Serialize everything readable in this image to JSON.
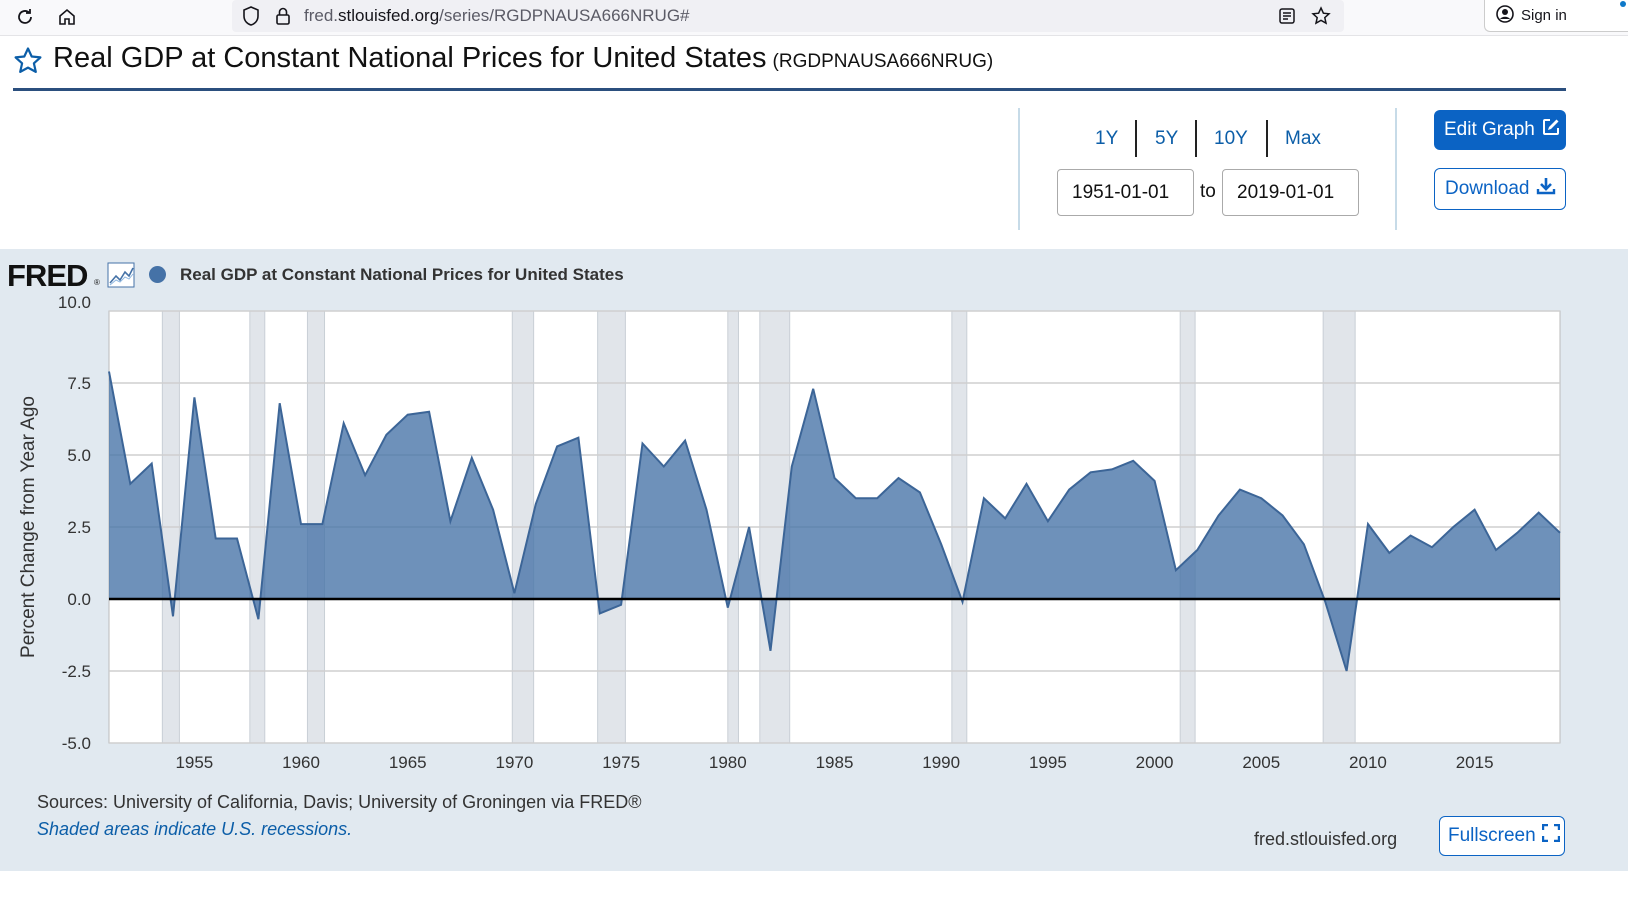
{
  "browser": {
    "url_prefix": "fred.",
    "url_domain": "stlouisfed.org",
    "url_path": "/series/RGDPNAUSA666NRUG#",
    "sign_in_label": "Sign in"
  },
  "header": {
    "title": "Real GDP at Constant National Prices for United States",
    "series_id": "(RGDPNAUSA666NRUG)"
  },
  "controls": {
    "ranges": [
      "1Y",
      "5Y",
      "10Y",
      "Max"
    ],
    "start_date": "1951-01-01",
    "to_label": "to",
    "end_date": "2019-01-01",
    "edit_graph_label": "Edit Graph",
    "download_label": "Download"
  },
  "graph": {
    "logo_text": "FRED",
    "logo_reg": "®",
    "legend_label": "Real GDP at Constant National Prices for United States",
    "series_color": "#4572a7",
    "sources": "Sources: University of California, Davis; University of Groningen via FRED®",
    "recession_note": "Shaded areas indicate U.S. recessions.",
    "site_url": "fred.stlouisfed.org",
    "fullscreen_label": "Fullscreen"
  },
  "chart_data": {
    "type": "area",
    "title": "Real GDP at Constant National Prices for United States",
    "ylabel": "Percent Change from Year Ago",
    "xlabel": "",
    "ylim": [
      -5.0,
      10.0
    ],
    "xlim": [
      1951,
      2019
    ],
    "y_ticks": [
      "10.0",
      "7.5",
      "5.0",
      "2.5",
      "0.0",
      "-2.5",
      "-5.0"
    ],
    "y_tick_values": [
      10.0,
      7.5,
      5.0,
      2.5,
      0.0,
      -2.5,
      -5.0
    ],
    "x_ticks": [
      "1955",
      "1960",
      "1965",
      "1970",
      "1975",
      "1980",
      "1985",
      "1990",
      "1995",
      "2000",
      "2005",
      "2010",
      "2015"
    ],
    "x_tick_values": [
      1955,
      1960,
      1965,
      1970,
      1975,
      1980,
      1985,
      1990,
      1995,
      2000,
      2005,
      2010,
      2015
    ],
    "recessions": [
      [
        1953.5,
        1954.3
      ],
      [
        1957.6,
        1958.3
      ],
      [
        1960.3,
        1961.1
      ],
      [
        1969.9,
        1970.9
      ],
      [
        1973.9,
        1975.2
      ],
      [
        1980.0,
        1980.5
      ],
      [
        1981.5,
        1982.9
      ],
      [
        1990.5,
        1991.2
      ],
      [
        2001.2,
        2001.9
      ],
      [
        2007.9,
        2009.4
      ]
    ],
    "x": [
      1951,
      1952,
      1953,
      1954,
      1955,
      1956,
      1957,
      1958,
      1959,
      1960,
      1961,
      1962,
      1963,
      1964,
      1965,
      1966,
      1967,
      1968,
      1969,
      1970,
      1971,
      1972,
      1973,
      1974,
      1975,
      1976,
      1977,
      1978,
      1979,
      1980,
      1981,
      1982,
      1983,
      1984,
      1985,
      1986,
      1987,
      1988,
      1989,
      1990,
      1991,
      1992,
      1993,
      1994,
      1995,
      1996,
      1997,
      1998,
      1999,
      2000,
      2001,
      2002,
      2003,
      2004,
      2005,
      2006,
      2007,
      2008,
      2009,
      2010,
      2011,
      2012,
      2013,
      2014,
      2015,
      2016,
      2017,
      2018,
      2019
    ],
    "series": [
      {
        "name": "Real GDP at Constant National Prices for United States",
        "values": [
          7.9,
          4.0,
          4.7,
          -0.6,
          7.0,
          2.1,
          2.1,
          -0.7,
          6.8,
          2.6,
          2.6,
          6.1,
          4.3,
          5.7,
          6.4,
          6.5,
          2.7,
          4.9,
          3.1,
          0.2,
          3.3,
          5.3,
          5.6,
          -0.5,
          -0.2,
          5.4,
          4.6,
          5.5,
          3.1,
          -0.3,
          2.5,
          -1.8,
          4.6,
          7.3,
          4.2,
          3.5,
          3.5,
          4.2,
          3.7,
          1.9,
          -0.1,
          3.5,
          2.8,
          4.0,
          2.7,
          3.8,
          4.4,
          4.5,
          4.8,
          4.1,
          1.0,
          1.7,
          2.9,
          3.8,
          3.5,
          2.9,
          1.9,
          -0.1,
          -2.5,
          2.6,
          1.6,
          2.2,
          1.8,
          2.5,
          3.1,
          1.7,
          2.3,
          3.0,
          2.3
        ]
      }
    ]
  }
}
